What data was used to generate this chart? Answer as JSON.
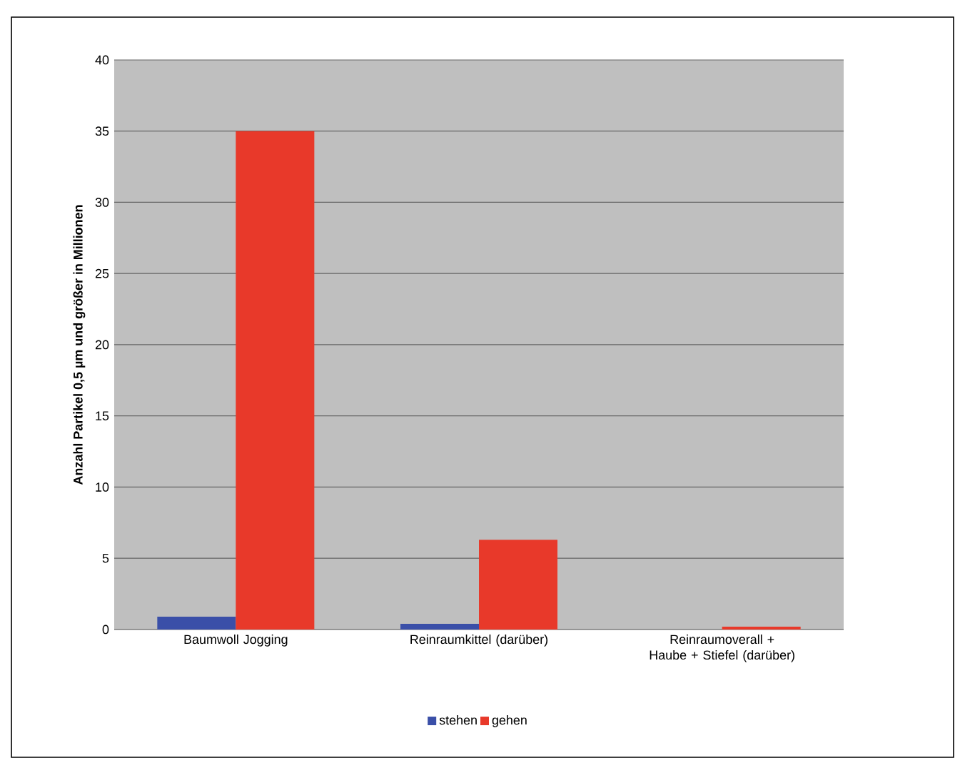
{
  "chart_data": {
    "type": "bar",
    "ylabel": "Anzahl Partikel 0,5 µm und größer in Millionen",
    "categories": [
      "Baumwoll Jogging",
      "Reinraumkittel (darüber)",
      "Reinraumoverall + Haube + Stiefel (darüber)"
    ],
    "series": [
      {
        "name": "stehen",
        "color": "#3a4fa8",
        "values": [
          0.9,
          0.4,
          0
        ]
      },
      {
        "name": "gehen",
        "color": "#e8392a",
        "values": [
          35,
          6.3,
          0.2
        ]
      }
    ],
    "ylim": [
      0,
      40
    ],
    "yticks": [
      0,
      5,
      10,
      15,
      20,
      25,
      30,
      35,
      40
    ],
    "grid": "y",
    "legend": "bottom"
  }
}
